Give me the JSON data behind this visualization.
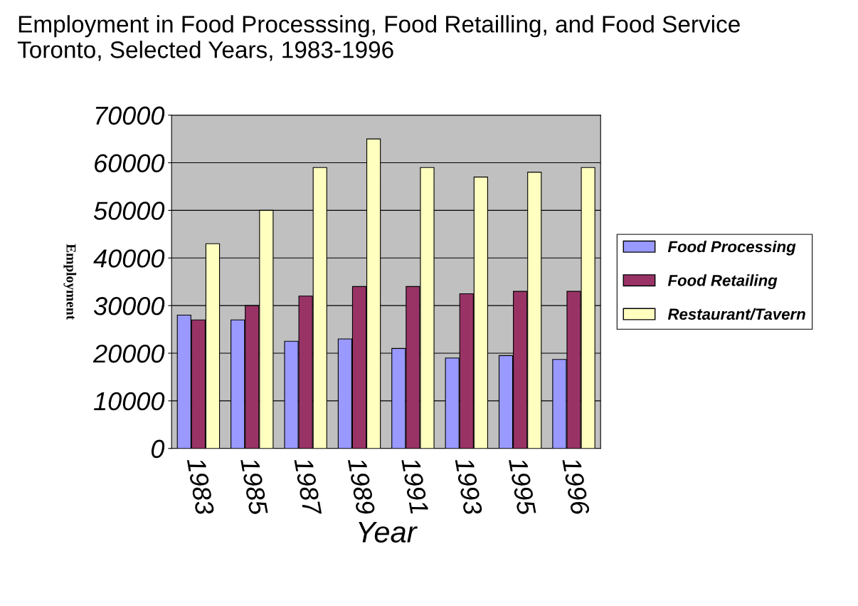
{
  "chart_data": {
    "type": "bar",
    "title": "Employment in Food Processsing, Food Retailling, and Food Service\nToronto, Selected Years, 1983-1996",
    "xlabel": "Year",
    "ylabel": "Employment",
    "categories": [
      "1983",
      "1985",
      "1987",
      "1989",
      "1991",
      "1993",
      "1995",
      "1996"
    ],
    "series": [
      {
        "name": "Food Processing",
        "color": "#9999ff",
        "values": [
          28000,
          27000,
          22500,
          23000,
          21000,
          19000,
          19500,
          18700
        ]
      },
      {
        "name": "Food Retailing",
        "color": "#993366",
        "values": [
          27000,
          30000,
          32000,
          34000,
          34000,
          32500,
          33000,
          33000
        ]
      },
      {
        "name": "Restaurant/Tavern",
        "color": "#ffffc0",
        "values": [
          43000,
          50000,
          59000,
          65000,
          59000,
          57000,
          58000,
          59000
        ]
      }
    ],
    "ylim": [
      0,
      70000
    ],
    "yticks": [
      0,
      10000,
      20000,
      30000,
      40000,
      50000,
      60000,
      70000
    ],
    "grid": "y",
    "legend": "right"
  }
}
